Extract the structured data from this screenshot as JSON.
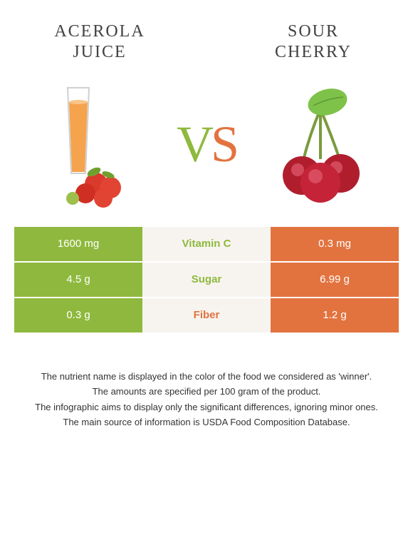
{
  "colors": {
    "left": "#8fb93e",
    "right": "#e2733f",
    "mid_bg": "#f7f4ef",
    "text_dark": "#424242"
  },
  "left": {
    "title_line1": "ACEROLA",
    "title_line2": "JUICE"
  },
  "right": {
    "title_line1": "SOUR",
    "title_line2": "CHERRY"
  },
  "vs": {
    "v": "V",
    "s": "S"
  },
  "rows": [
    {
      "left": "1600 mg",
      "label": "Vitamin C",
      "right": "0.3 mg",
      "winner": "left"
    },
    {
      "left": "4.5 g",
      "label": "Sugar",
      "right": "6.99 g",
      "winner": "left"
    },
    {
      "left": "0.3 g",
      "label": "Fiber",
      "right": "1.2 g",
      "winner": "right"
    }
  ],
  "footnotes": [
    "The nutrient name is displayed in the color of the food we considered as 'winner'.",
    "The amounts are specified per 100 gram of the product.",
    "The infographic aims to display only the significant differences, ignoring minor ones.",
    "The main source of information is USDA Food Composition Database."
  ]
}
